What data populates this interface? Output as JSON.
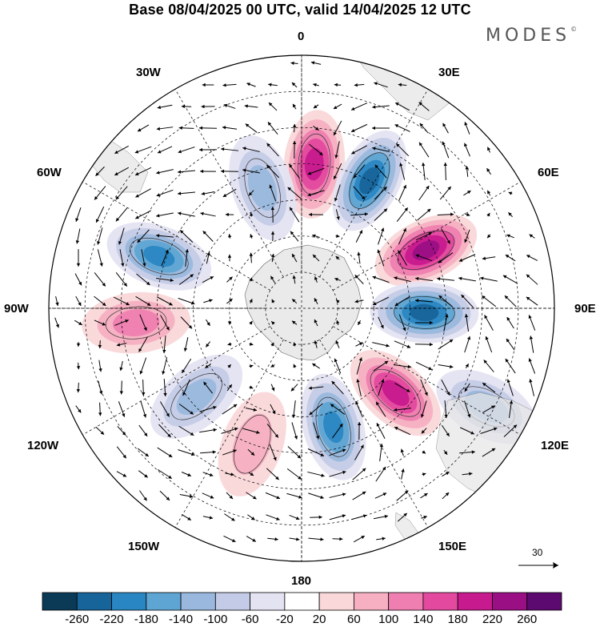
{
  "title": "Base 08/04/2025 00 UTC, valid 14/04/2025 12 UTC",
  "logo": "MODES",
  "logo_mark": "©",
  "longitude_labels": {
    "top": "0",
    "top_left": "30W",
    "top_right": "30E",
    "upper_left": "60W",
    "upper_right": "60E",
    "left": "90W",
    "right": "90E",
    "lower_left": "120W",
    "lower_right": "120E",
    "bottom_left": "150W",
    "bottom_right": "150E",
    "bottom": "180"
  },
  "reference_vector": {
    "value": "30"
  },
  "colorbar": {
    "ticks": [
      "-260",
      "-220",
      "-180",
      "-140",
      "-100",
      "-60",
      "-20",
      "20",
      "60",
      "100",
      "140",
      "180",
      "220",
      "260"
    ],
    "colors": [
      "#0b3a57",
      "#17649a",
      "#2a86c2",
      "#5fa5d3",
      "#9ab8dd",
      "#c4cbe6",
      "#e4e3f2",
      "#ffffff",
      "#fad7d9",
      "#f6b0c2",
      "#ee7fb0",
      "#e3499f",
      "#c71a8e",
      "#9b0f85",
      "#5d0a70"
    ]
  },
  "anomaly_centers": [
    {
      "kind": "positive",
      "level": 4,
      "lon": 5,
      "lat": -50
    },
    {
      "kind": "negative",
      "level": 5,
      "lon": 28,
      "lat": -50
    },
    {
      "kind": "positive",
      "level": 5,
      "lon": 65,
      "lat": -52
    },
    {
      "kind": "negative",
      "level": 5,
      "lon": 92,
      "lat": -56
    },
    {
      "kind": "positive",
      "level": 4,
      "lon": 132,
      "lat": -55
    },
    {
      "kind": "negative",
      "level": 4,
      "lon": 165,
      "lat": -56
    },
    {
      "kind": "negative",
      "level": 2,
      "lon": -130,
      "lat": -52
    },
    {
      "kind": "positive",
      "level": 2,
      "lon": -95,
      "lat": -44
    },
    {
      "kind": "negative",
      "level": 4,
      "lon": -70,
      "lat": -48
    },
    {
      "kind": "negative",
      "level": 2,
      "lon": -18,
      "lat": -55
    },
    {
      "kind": "negative",
      "level": 2,
      "lon": 118,
      "lat": -32
    },
    {
      "kind": "positive",
      "level": 1,
      "lon": -160,
      "lat": -50
    }
  ]
}
